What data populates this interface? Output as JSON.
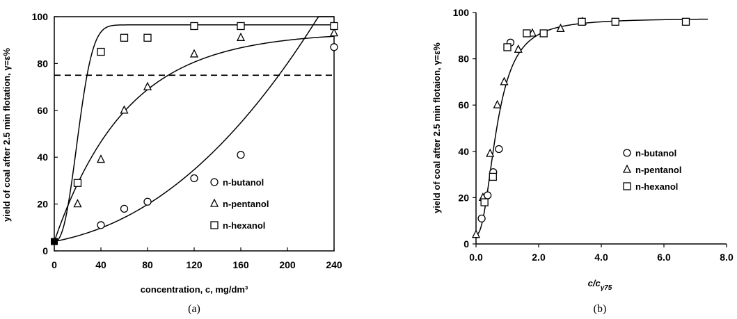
{
  "chart_data": [
    {
      "type": "scatter",
      "xlabel": "concentration, c, mg/dm³",
      "ylabel": "yield of coal after 2.5 min flotation, γ=ε%",
      "xlim": [
        0,
        240
      ],
      "ylim": [
        0,
        100
      ],
      "x_ticks": [
        "0",
        "40",
        "80",
        "120",
        "160",
        "200",
        "240"
      ],
      "y_ticks": [
        "0",
        "20",
        "40",
        "60",
        "80",
        "100"
      ],
      "legend_position": "bottom-right",
      "reference_line": {
        "y": 75,
        "style": "dashed"
      },
      "caption": "(a)",
      "series": [
        {
          "name": "n-butanol",
          "marker": "circle",
          "points": [
            [
              0,
              4
            ],
            [
              40,
              11
            ],
            [
              60,
              18
            ],
            [
              80,
              21
            ],
            [
              120,
              31
            ],
            [
              160,
              41
            ],
            [
              240,
              87
            ]
          ]
        },
        {
          "name": "n-pentanol",
          "marker": "triangle",
          "points": [
            [
              0,
              4
            ],
            [
              20,
              20
            ],
            [
              40,
              39
            ],
            [
              60,
              60
            ],
            [
              80,
              70
            ],
            [
              120,
              84
            ],
            [
              160,
              91
            ],
            [
              240,
              93
            ]
          ]
        },
        {
          "name": "n-hexanol",
          "marker": "square",
          "points": [
            [
              0,
              4
            ],
            [
              20,
              29
            ],
            [
              40,
              85
            ],
            [
              60,
              91
            ],
            [
              80,
              91
            ],
            [
              120,
              96
            ],
            [
              160,
              96
            ],
            [
              240,
              96
            ]
          ]
        }
      ]
    },
    {
      "type": "scatter",
      "xlabel_main": "c/c",
      "xlabel_sub": "γ75",
      "ylabel": "yield of coal after 2.5 min flotaion, γ=ε%",
      "xlim": [
        0,
        8
      ],
      "ylim": [
        0,
        100
      ],
      "x_ticks": [
        "0.0",
        "2.0",
        "4.0",
        "6.0",
        "8.0"
      ],
      "y_ticks": [
        "0",
        "20",
        "40",
        "60",
        "80",
        "100"
      ],
      "legend_position": "center-right",
      "caption": "(b)",
      "series": [
        {
          "name": "n-butanol",
          "marker": "circle",
          "points": [
            [
              0.18,
              11
            ],
            [
              0.37,
              21
            ],
            [
              0.55,
              31
            ],
            [
              0.73,
              41
            ],
            [
              1.1,
              87
            ]
          ]
        },
        {
          "name": "n-pentanol",
          "marker": "triangle",
          "points": [
            [
              0.0,
              4
            ],
            [
              0.22,
              20
            ],
            [
              0.45,
              39
            ],
            [
              0.68,
              60
            ],
            [
              0.9,
              70
            ],
            [
              1.35,
              84
            ],
            [
              1.8,
              91
            ],
            [
              2.7,
              93
            ],
            [
              3.4,
              96
            ]
          ]
        },
        {
          "name": "n-hexanol",
          "marker": "square",
          "points": [
            [
              0.27,
              18
            ],
            [
              0.54,
              29
            ],
            [
              1.0,
              85
            ],
            [
              1.62,
              91
            ],
            [
              2.16,
              91
            ],
            [
              3.38,
              96
            ],
            [
              4.45,
              96
            ],
            [
              6.7,
              96
            ]
          ]
        }
      ]
    }
  ]
}
